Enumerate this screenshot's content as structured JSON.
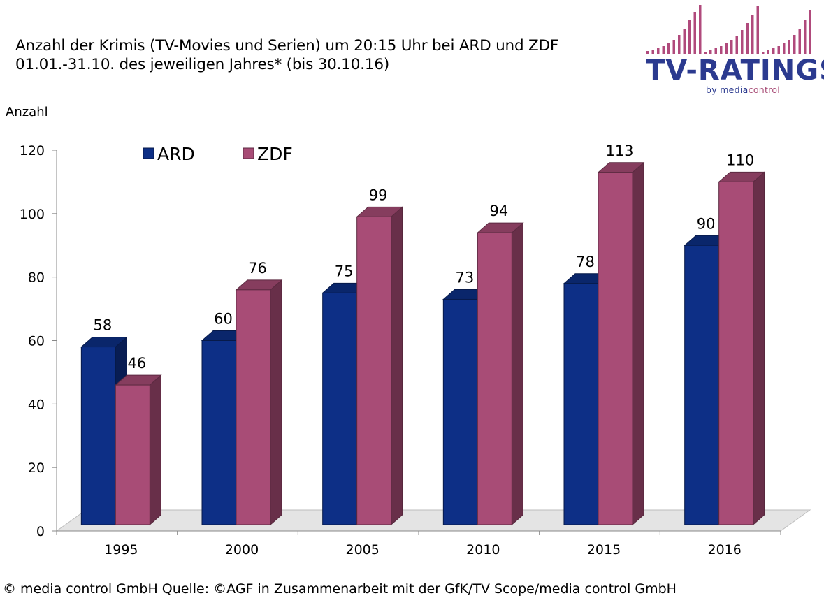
{
  "title": {
    "line1": "Anzahl der Krimis (TV-Movies und Serien) um 20:15 Uhr bei ARD und ZDF",
    "line2": "01.01.-31.10. des jeweiligen Jahres* (bis 30.10.16)"
  },
  "logo": {
    "name": "TV-RATINGS",
    "by": "by media",
    "by_accent": "control"
  },
  "footer": "© media control GmbH  Quelle: ©AGF in Zusammenarbeit mit der GfK/TV Scope/media control GmbH",
  "chart_data": {
    "type": "bar",
    "title": "Anzahl der Krimis (TV-Movies und Serien) um 20:15 Uhr bei ARD und ZDF",
    "ylabel": "Anzahl",
    "xlabel": "",
    "categories": [
      "1995",
      "2000",
      "2005",
      "2010",
      "2015",
      "2016"
    ],
    "series": [
      {
        "name": "ARD",
        "color": "#0d2f86",
        "values": [
          58,
          60,
          75,
          73,
          78,
          90
        ]
      },
      {
        "name": "ZDF",
        "color": "#a84c76",
        "values": [
          46,
          76,
          99,
          94,
          113,
          110
        ]
      }
    ],
    "ylim": [
      0,
      120
    ],
    "yticks": [
      0,
      20,
      40,
      60,
      80,
      100,
      120
    ],
    "legend_position": "top-left",
    "grid": false,
    "style": "3d-bar"
  }
}
